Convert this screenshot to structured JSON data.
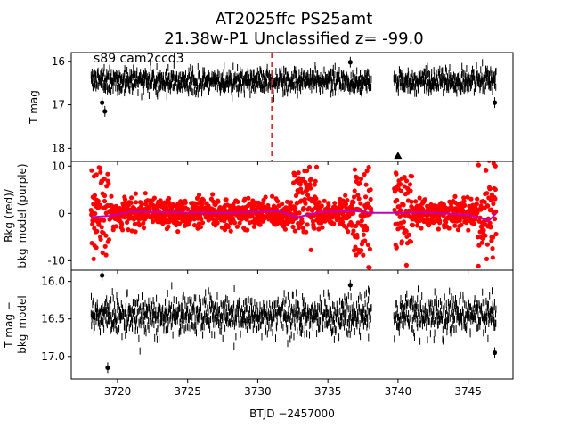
{
  "title_line1": "AT2025ffc  PS25amt",
  "title_line2": "21.38w-P1 Unclassified z= -99.0",
  "xlabel": "BTJD −2457000",
  "chart_data": [
    {
      "type": "scatter",
      "ylabel": "T mag",
      "annotation": "s89 cam2ccd3",
      "ylim": [
        18.3,
        15.8
      ],
      "xlim": [
        3716.7,
        3748.2
      ],
      "yticks": [
        16,
        17,
        18
      ],
      "y_inverted": true,
      "vline": {
        "x": 3731.0,
        "color": "#d62728",
        "style": "dashed"
      },
      "marker": {
        "x": 3740.0,
        "y": 18.18,
        "shape": "triangle-up"
      },
      "series": [
        {
          "color": "#000000",
          "segments": [
            {
              "x0": 3718.1,
              "x1": 3738.1,
              "center": 16.45,
              "spread": 0.28
            },
            {
              "x0": 3739.7,
              "x1": 3747.0,
              "center": 16.45,
              "spread": 0.28
            }
          ]
        }
      ],
      "outliers": [
        {
          "x": 3719.1,
          "y": 17.15
        },
        {
          "x": 3718.9,
          "y": 16.95
        },
        {
          "x": 3736.6,
          "y": 16.02
        },
        {
          "x": 3746.9,
          "y": 16.95
        }
      ]
    },
    {
      "type": "scatter",
      "ylabel": "Bkg (red)/\nbkg_model (purple)",
      "ylim": [
        -12,
        11
      ],
      "xlim": [
        3716.7,
        3748.2
      ],
      "yticks": [
        10,
        0,
        -10
      ],
      "series": [
        {
          "color": "#ff0000",
          "segments": [
            {
              "x0": 3718.1,
              "x1": 3738.1,
              "center": 0,
              "spread": 3.2
            },
            {
              "x0": 3739.7,
              "x1": 3747.0,
              "center": 0,
              "spread": 3.2
            }
          ]
        }
      ],
      "model_line": {
        "color": "#bf00bf",
        "points": [
          [
            3718.1,
            -0.8
          ],
          [
            3719.5,
            -0.5
          ],
          [
            3721.0,
            0.4
          ],
          [
            3724.0,
            0.2
          ],
          [
            3728.0,
            0.1
          ],
          [
            3731.5,
            0.5
          ],
          [
            3732.8,
            -0.8
          ],
          [
            3734.5,
            0.3
          ],
          [
            3737.0,
            0.5
          ],
          [
            3738.1,
            0.1
          ],
          [
            3739.7,
            0.1
          ],
          [
            3742.0,
            0.2
          ],
          [
            3745.0,
            -0.3
          ],
          [
            3746.5,
            -1.5
          ],
          [
            3747.0,
            0.0
          ]
        ]
      }
    },
    {
      "type": "scatter",
      "ylabel": "T mag −\nbkg_model",
      "ylim": [
        17.3,
        15.85
      ],
      "xlim": [
        3716.7,
        3748.2
      ],
      "yticks": [
        16.0,
        16.5,
        17.0
      ],
      "ytick_labels": [
        "16.0",
        "16.5",
        "17.0"
      ],
      "y_inverted": true,
      "xticks": [
        3720,
        3725,
        3730,
        3735,
        3740,
        3745
      ],
      "series": [
        {
          "color": "#000000",
          "segments": [
            {
              "x0": 3718.1,
              "x1": 3738.1,
              "center": 16.45,
              "spread": 0.28
            },
            {
              "x0": 3739.7,
              "x1": 3747.0,
              "center": 16.45,
              "spread": 0.28
            }
          ]
        }
      ],
      "outliers": [
        {
          "x": 3719.3,
          "y": 17.15
        },
        {
          "x": 3718.9,
          "y": 15.92
        },
        {
          "x": 3736.6,
          "y": 16.05
        },
        {
          "x": 3746.9,
          "y": 16.95
        }
      ]
    }
  ]
}
